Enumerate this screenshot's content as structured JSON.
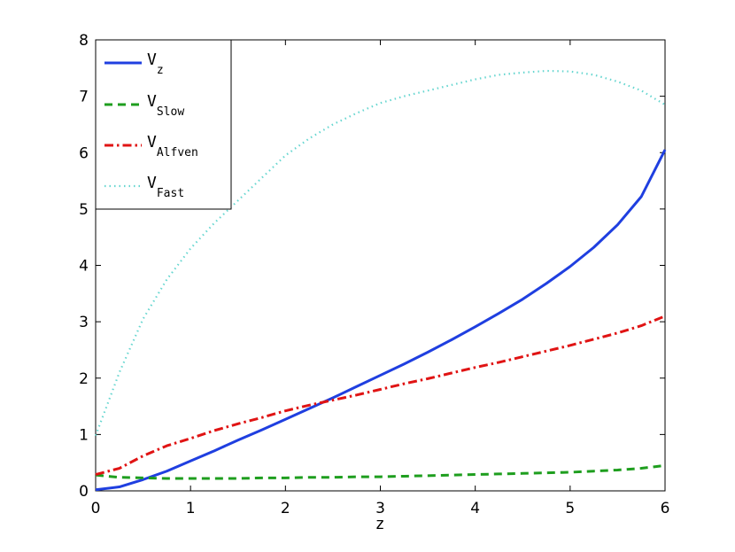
{
  "chart_data": {
    "type": "line",
    "title": "",
    "xlabel": "z",
    "ylabel": "",
    "xlim": [
      0,
      6
    ],
    "ylim": [
      0,
      8
    ],
    "xticks": [
      0,
      1,
      2,
      3,
      4,
      5,
      6
    ],
    "yticks": [
      0,
      1,
      2,
      3,
      4,
      5,
      6,
      7,
      8
    ],
    "grid": false,
    "legend_position": "top-left",
    "x": [
      0,
      0.25,
      0.5,
      0.75,
      1,
      1.25,
      1.5,
      1.75,
      2,
      2.25,
      2.5,
      2.75,
      3,
      3.25,
      3.5,
      3.75,
      4,
      4.25,
      4.5,
      4.75,
      5,
      5.25,
      5.5,
      5.75,
      6
    ],
    "series": [
      {
        "name": "V",
        "subscript": "z",
        "color": "#1f3fe0",
        "dash": "solid",
        "values": [
          0.02,
          0.07,
          0.2,
          0.35,
          0.53,
          0.71,
          0.9,
          1.08,
          1.27,
          1.46,
          1.65,
          1.85,
          2.05,
          2.25,
          2.46,
          2.68,
          2.91,
          3.15,
          3.4,
          3.68,
          3.98,
          4.32,
          4.72,
          5.22,
          6.05
        ]
      },
      {
        "name": "V",
        "subscript": "Slow",
        "color": "#1e9e1e",
        "dash": "dashed",
        "values": [
          0.28,
          0.24,
          0.23,
          0.22,
          0.22,
          0.22,
          0.22,
          0.23,
          0.23,
          0.24,
          0.24,
          0.25,
          0.25,
          0.26,
          0.27,
          0.28,
          0.29,
          0.3,
          0.31,
          0.32,
          0.33,
          0.35,
          0.37,
          0.4,
          0.45
        ]
      },
      {
        "name": "V",
        "subscript": "Alfven",
        "color": "#e01414",
        "dash": "dashdot",
        "values": [
          0.29,
          0.4,
          0.62,
          0.8,
          0.93,
          1.07,
          1.19,
          1.3,
          1.42,
          1.52,
          1.61,
          1.7,
          1.8,
          1.9,
          1.99,
          2.09,
          2.19,
          2.28,
          2.38,
          2.48,
          2.58,
          2.69,
          2.8,
          2.93,
          3.1
        ]
      },
      {
        "name": "V",
        "subscript": "Fast",
        "color": "#66d6d0",
        "dash": "dotted",
        "values": [
          0.98,
          2.1,
          3.05,
          3.75,
          4.3,
          4.75,
          5.15,
          5.55,
          5.95,
          6.25,
          6.5,
          6.7,
          6.88,
          7.0,
          7.1,
          7.2,
          7.3,
          7.38,
          7.42,
          7.45,
          7.44,
          7.38,
          7.26,
          7.1,
          6.85
        ]
      }
    ]
  }
}
